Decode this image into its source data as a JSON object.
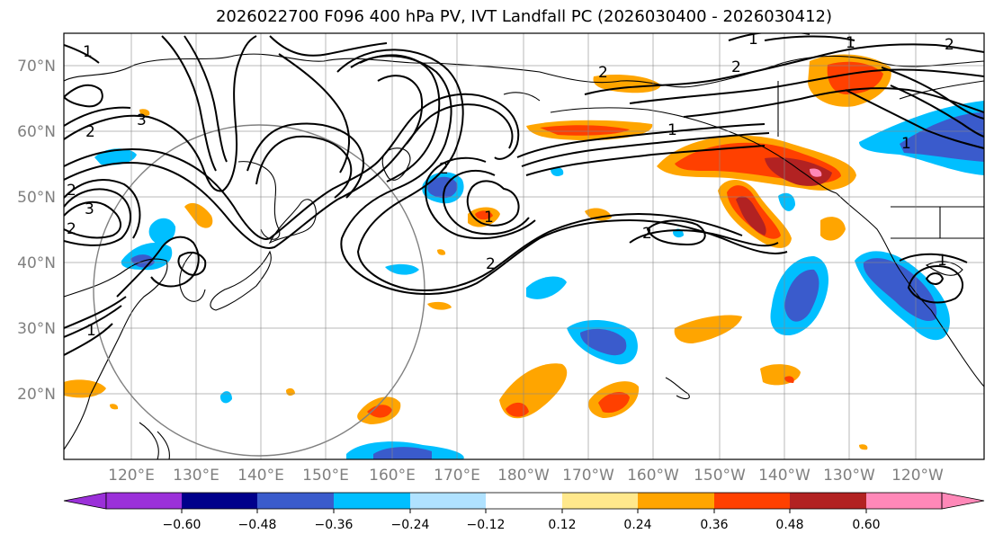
{
  "title": "2026022700 F096 400 hPa PV, IVT Landfall PC (2026030400 - 2026030412)",
  "map": {
    "lat_labels": [
      "70°N",
      "60°N",
      "50°N",
      "40°N",
      "30°N",
      "20°N"
    ],
    "lon_labels": [
      "120°E",
      "130°E",
      "140°E",
      "150°E",
      "160°E",
      "170°E",
      "180°W",
      "170°W",
      "160°W",
      "150°W",
      "140°W",
      "130°W",
      "120°W"
    ],
    "contour_labels": [
      "1",
      "2",
      "3",
      "2",
      "3",
      "2",
      "1",
      "2",
      "1",
      "2",
      "2",
      "1",
      "2",
      "2",
      "1",
      "1",
      "1",
      "1",
      "2"
    ]
  },
  "colorbar": {
    "colors": [
      "#9b30d9",
      "#00008b",
      "#3a5bcc",
      "#00bfff",
      "#b0e2ff",
      "#ffffff",
      "#ffe88c",
      "#ffa500",
      "#ff4000",
      "#b22222",
      "#ff88b8"
    ],
    "tick_labels": [
      "−0.60",
      "−0.48",
      "−0.36",
      "−0.24",
      "−0.12",
      "0.12",
      "0.24",
      "0.36",
      "0.48",
      "0.60"
    ]
  }
}
